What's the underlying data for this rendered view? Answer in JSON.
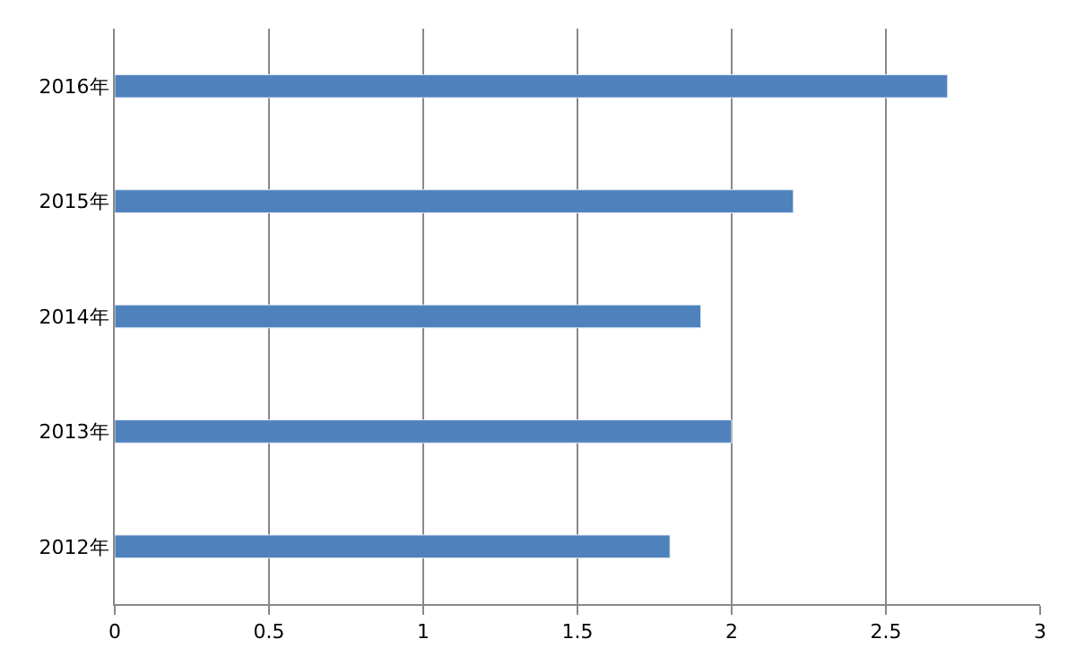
{
  "chart_data": {
    "type": "bar",
    "orientation": "horizontal",
    "categories": [
      "2016年",
      "2015年",
      "2014年",
      "2013年",
      "2012年"
    ],
    "series": [
      {
        "color": "#4f81bd",
        "values": [
          2.7,
          2.2,
          1.9,
          2.0,
          1.8
        ]
      }
    ],
    "xlim": [
      0,
      3
    ],
    "xticks": [
      0,
      0.5,
      1,
      1.5,
      2,
      2.5,
      3
    ],
    "grid": "x"
  }
}
